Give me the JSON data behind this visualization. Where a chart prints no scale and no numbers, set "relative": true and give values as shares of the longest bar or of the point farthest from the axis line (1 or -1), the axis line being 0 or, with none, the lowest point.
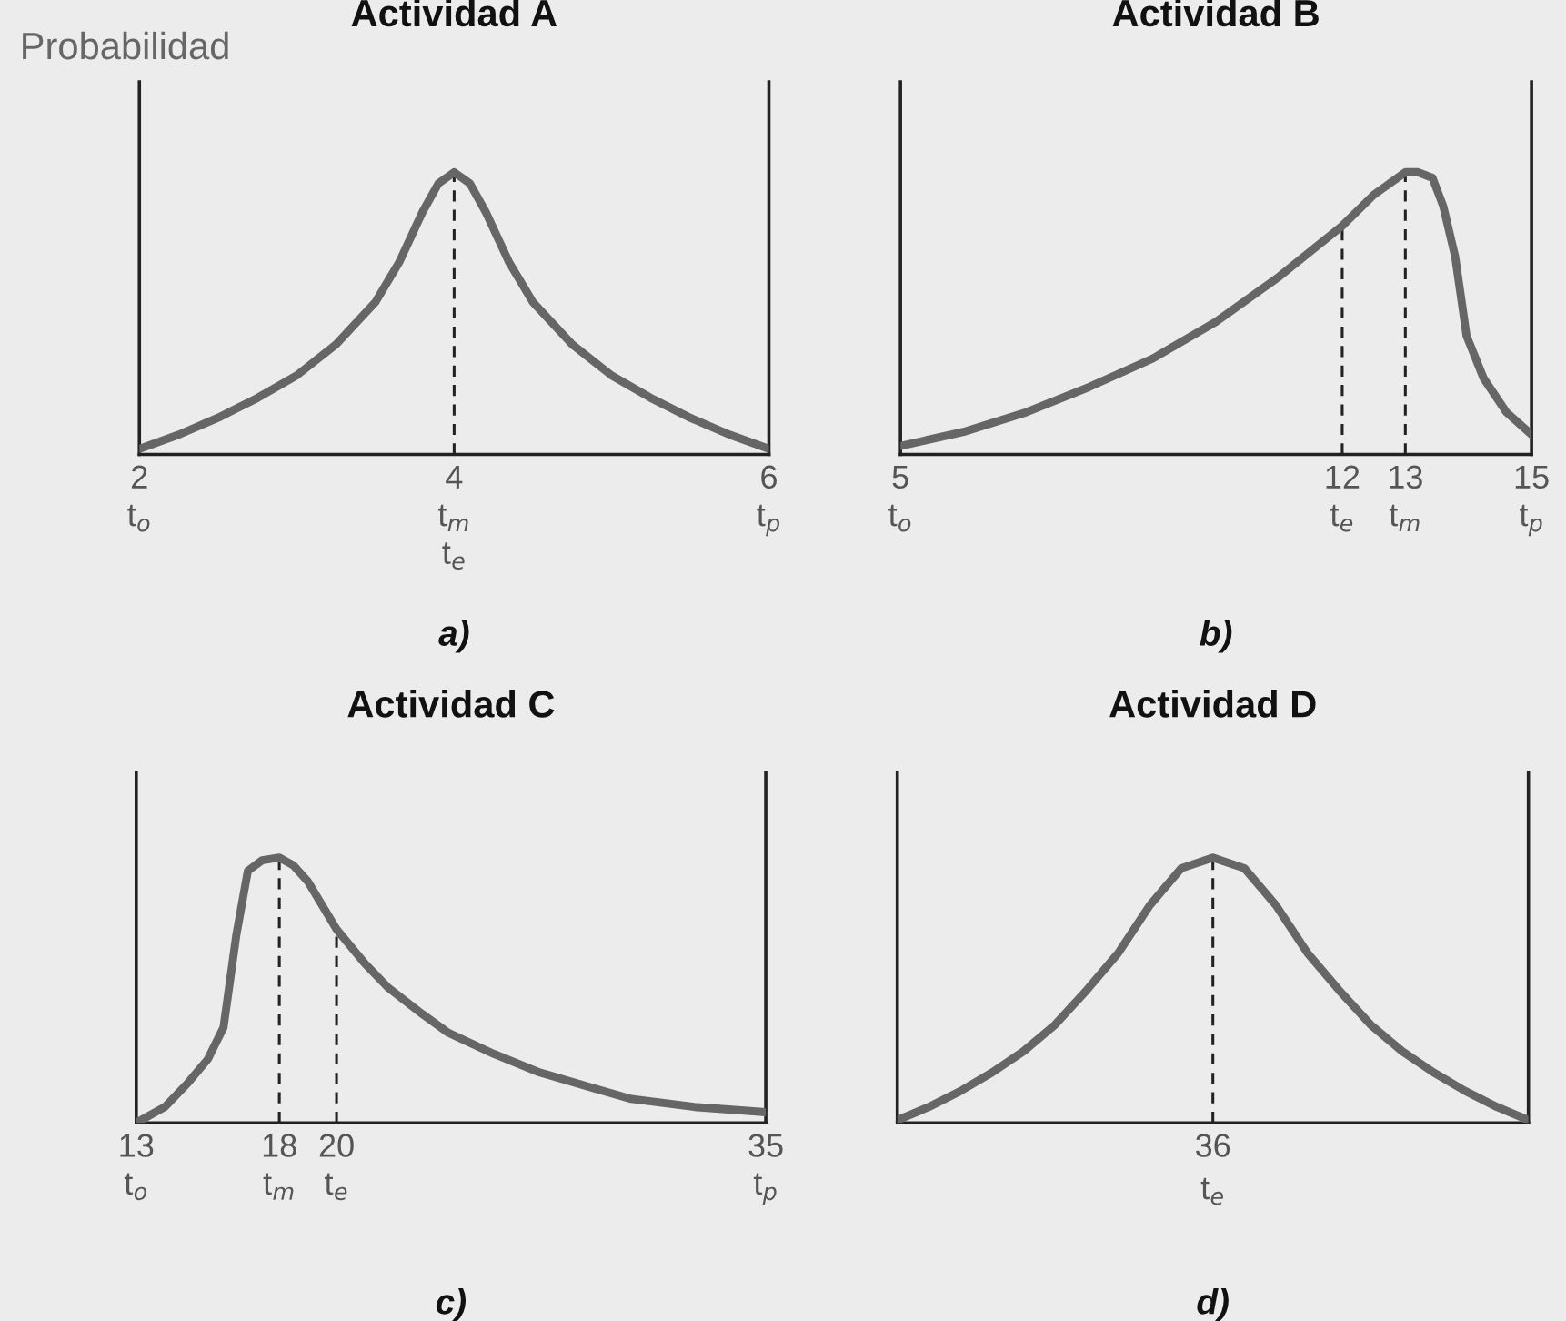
{
  "chart_data": [
    {
      "type": "line",
      "title": "Actividad A",
      "ylabel": "Probabilidad",
      "relative": true,
      "xlim": [
        2,
        6
      ],
      "xticks": [
        {
          "value": 2,
          "label": "2\nt$_{o}$"
        },
        {
          "value": 4,
          "label": "4\nt$_{m}$\nt$_{e}$"
        },
        {
          "value": 6,
          "label": "6\nt$_{p}$"
        }
      ],
      "annotations": [
        "a)"
      ],
      "ref_lines": [
        {
          "axis": "x",
          "value": 4,
          "label": null,
          "color": "#222222",
          "line_style": "dashed"
        }
      ],
      "series": [
        {
          "color": "#666666",
          "line_style": "solid",
          "x": [
            2,
            2.25,
            2.5,
            2.75,
            3,
            3.25,
            3.5,
            3.65,
            3.8,
            3.9,
            4,
            4.1,
            4.2,
            4.35,
            4.5,
            4.75,
            5,
            5.25,
            5.5,
            5.75,
            6
          ],
          "values": [
            0.02,
            0.07,
            0.13,
            0.2,
            0.28,
            0.39,
            0.54,
            0.68,
            0.86,
            0.96,
            1,
            0.96,
            0.86,
            0.68,
            0.54,
            0.39,
            0.28,
            0.2,
            0.13,
            0.07,
            0.02
          ]
        }
      ]
    },
    {
      "type": "line",
      "title": "Actividad B",
      "relative": true,
      "xlim": [
        5,
        15
      ],
      "xticks": [
        {
          "value": 5,
          "label": "5\nt$_{o}$"
        },
        {
          "value": 12,
          "label": "12\nt$_{e}$"
        },
        {
          "value": 13,
          "label": "13\nt$_{m}$"
        },
        {
          "value": 15,
          "label": "15\nt$_{p}$"
        }
      ],
      "annotations": [
        "b)"
      ],
      "ref_lines": [
        {
          "axis": "x",
          "value": 12,
          "label": null,
          "color": "#222222",
          "line_style": "dashed"
        },
        {
          "axis": "x",
          "value": 13,
          "label": null,
          "color": "#222222",
          "line_style": "dashed"
        }
      ],
      "series": [
        {
          "color": "#666666",
          "line_style": "solid",
          "x": [
            5,
            6,
            7,
            8,
            9,
            10,
            11,
            12,
            12.5,
            13,
            13.2,
            13.43,
            13.6,
            13.79,
            13.97,
            14.24,
            14.6,
            15
          ],
          "values": [
            0.03,
            0.08,
            0.15,
            0.24,
            0.34,
            0.47,
            0.63,
            0.81,
            0.92,
            1,
            1,
            0.98,
            0.88,
            0.7,
            0.42,
            0.27,
            0.15,
            0.07
          ]
        }
      ]
    },
    {
      "type": "line",
      "title": "Actividad C",
      "relative": true,
      "xlim": [
        13,
        35
      ],
      "xticks": [
        {
          "value": 13,
          "label": "13\nt$_{o}$"
        },
        {
          "value": 18,
          "label": "18\nt$_{m}$"
        },
        {
          "value": 20,
          "label": "20\nt$_{e}$"
        },
        {
          "value": 35,
          "label": "35\nt$_{p}$"
        }
      ],
      "annotations": [
        "c)"
      ],
      "ref_lines": [
        {
          "axis": "x",
          "value": 18,
          "label": null,
          "color": "#222222",
          "line_style": "dashed"
        },
        {
          "axis": "x",
          "value": 20,
          "label": null,
          "color": "#222222",
          "line_style": "dashed"
        }
      ],
      "series": [
        {
          "color": "#666666",
          "line_style": "solid",
          "x": [
            13,
            14,
            14.8,
            15.5,
            16.05,
            16.5,
            16.9,
            17.4,
            18,
            18.5,
            19,
            20,
            21,
            21.8,
            23,
            23.9,
            25.5,
            27.1,
            29,
            30.3,
            32.5,
            35
          ],
          "values": [
            0,
            0.06,
            0.15,
            0.24,
            0.36,
            0.71,
            0.95,
            0.99,
            1,
            0.97,
            0.91,
            0.73,
            0.6,
            0.51,
            0.41,
            0.34,
            0.26,
            0.19,
            0.13,
            0.09,
            0.06,
            0.04
          ]
        }
      ]
    },
    {
      "type": "line",
      "title": "Actividad D",
      "relative": true,
      "categories": [
        null,
        null,
        null,
        null,
        null,
        null,
        null,
        null,
        null,
        null,
        null,
        null,
        null,
        null,
        null,
        null,
        null,
        null,
        null,
        null,
        null
      ],
      "annotations": [
        {
          "text": "36\nt$_{e}$"
        },
        "d)"
      ],
      "series": [
        {
          "color": "#666666",
          "line_style": "solid",
          "values": [
            0.01,
            0.06,
            0.12,
            0.19,
            0.27,
            0.37,
            0.5,
            0.64,
            0.82,
            0.96,
            1,
            0.96,
            0.82,
            0.64,
            0.5,
            0.37,
            0.27,
            0.19,
            0.12,
            0.06,
            0.01
          ]
        }
      ]
    }
  ]
}
